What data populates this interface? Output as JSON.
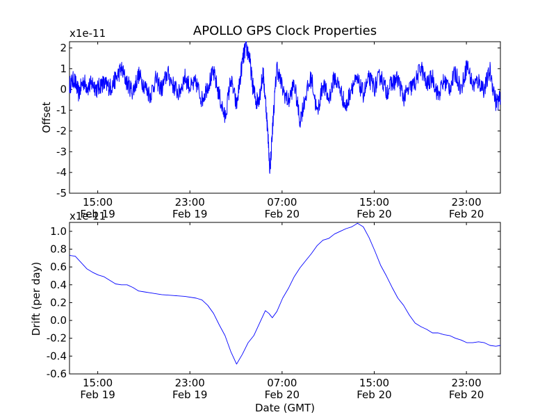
{
  "figure_title": "APOLLO GPS Clock Properties",
  "chart_data": [
    {
      "type": "line",
      "title": "APOLLO GPS Clock Properties",
      "ylabel": "Offset",
      "xlabel": "",
      "scale_label": "x1e-11",
      "ylim": [
        -5,
        2.3
      ],
      "yticks": [
        -5,
        -4,
        -3,
        -2,
        -1,
        0,
        1,
        2
      ],
      "ytick_labels": [
        "-5",
        "-4",
        "-3",
        "-2",
        "-1",
        "0",
        "1",
        "2"
      ],
      "xlim_hours": [
        0,
        37.4
      ],
      "xticks_hours": [
        2.45,
        10.45,
        18.45,
        26.45,
        34.45
      ],
      "xtick_labels": [
        [
          "15:00",
          "Feb 19"
        ],
        [
          "23:00",
          "Feb 19"
        ],
        [
          "07:00",
          "Feb 20"
        ],
        [
          "15:00",
          "Feb 20"
        ],
        [
          "23:00",
          "Feb 20"
        ]
      ],
      "color": "#0000ff",
      "series": [
        {
          "name": "Offset",
          "x_hours": [
            0,
            0.4,
            0.8,
            1.2,
            1.6,
            2.0,
            2.4,
            2.8,
            3.2,
            3.6,
            4.0,
            4.5,
            5.0,
            5.5,
            6.0,
            6.5,
            7.0,
            7.5,
            8.0,
            8.5,
            9.0,
            9.5,
            10.0,
            10.5,
            11.0,
            11.5,
            12.0,
            12.5,
            13.0,
            13.5,
            14.0,
            14.5,
            15.0,
            15.3,
            15.6,
            15.9,
            16.2,
            16.5,
            16.8,
            17.1,
            17.4,
            17.7,
            18.0,
            18.5,
            19.0,
            19.5,
            20.0,
            20.5,
            21.0,
            21.5,
            22.0,
            22.5,
            23.0,
            23.5,
            24.0,
            24.5,
            25.0,
            25.5,
            26.0,
            26.5,
            27.0,
            27.5,
            28.0,
            28.5,
            29.0,
            29.5,
            30.0,
            30.5,
            31.0,
            31.5,
            32.0,
            32.5,
            33.0,
            33.5,
            34.0,
            34.5,
            35.0,
            35.5,
            36.0,
            36.5,
            37.0,
            37.4
          ],
          "values": [
            0.2,
            0.5,
            -0.2,
            0.4,
            0.1,
            0.3,
            0.0,
            0.3,
            0.2,
            0.1,
            0.5,
            1.0,
            0.3,
            -0.1,
            0.7,
            0.2,
            -0.3,
            0.5,
            0.0,
            0.8,
            0.2,
            -0.2,
            0.6,
            0.1,
            0.3,
            -0.5,
            0.2,
            0.8,
            -0.3,
            -1.4,
            0.5,
            -0.8,
            1.3,
            2.1,
            1.6,
            0.2,
            -0.6,
            -0.3,
            0.8,
            -1.1,
            -3.9,
            -1.2,
            1.1,
            0.0,
            -0.6,
            0.3,
            -1.5,
            -0.3,
            0.6,
            -1.2,
            0.3,
            -0.5,
            0.6,
            0.0,
            -0.9,
            0.2,
            0.4,
            -0.2,
            0.5,
            0.1,
            0.7,
            -0.1,
            0.3,
            0.5,
            -0.4,
            0.0,
            0.3,
            1.1,
            0.2,
            0.6,
            -0.3,
            0.4,
            0.1,
            0.8,
            0.0,
            1.2,
            0.2,
            0.4,
            0.0,
            0.9,
            -0.6,
            -0.5
          ]
        }
      ]
    },
    {
      "type": "line",
      "title": "",
      "ylabel": "Drift (per day)",
      "xlabel": "Date (GMT)",
      "scale_label": "x1e-11",
      "ylim": [
        -0.6,
        1.1
      ],
      "yticks": [
        -0.6,
        -0.4,
        -0.2,
        0.0,
        0.2,
        0.4,
        0.6,
        0.8,
        1.0
      ],
      "ytick_labels": [
        "-0.6",
        "-0.4",
        "-0.2",
        "0.0",
        "0.2",
        "0.4",
        "0.6",
        "0.8",
        "1.0"
      ],
      "xlim_hours": [
        0,
        37.4
      ],
      "xticks_hours": [
        2.45,
        10.45,
        18.45,
        26.45,
        34.45
      ],
      "xtick_labels": [
        [
          "15:00",
          "Feb 19"
        ],
        [
          "23:00",
          "Feb 19"
        ],
        [
          "07:00",
          "Feb 20"
        ],
        [
          "15:00",
          "Feb 20"
        ],
        [
          "23:00",
          "Feb 20"
        ]
      ],
      "color": "#0000ff",
      "series": [
        {
          "name": "Drift",
          "x_hours": [
            0,
            0.5,
            1.0,
            1.5,
            2.0,
            2.5,
            3.0,
            3.5,
            4.0,
            4.5,
            5.0,
            5.5,
            6.0,
            6.5,
            7.0,
            8.0,
            9.0,
            10.0,
            11.0,
            11.5,
            12.0,
            12.5,
            13.0,
            13.5,
            14.0,
            14.5,
            15.0,
            15.5,
            16.0,
            16.5,
            17.0,
            17.3,
            17.6,
            18.0,
            18.5,
            19.0,
            19.5,
            20.0,
            20.5,
            21.0,
            21.5,
            22.0,
            22.5,
            23.0,
            23.5,
            24.0,
            24.5,
            25.0,
            25.5,
            26.0,
            26.5,
            27.0,
            27.5,
            28.0,
            28.5,
            29.0,
            29.5,
            30.0,
            30.5,
            31.0,
            31.5,
            32.0,
            32.5,
            33.0,
            33.5,
            34.0,
            34.5,
            35.0,
            35.5,
            36.0,
            36.5,
            37.0,
            37.4
          ],
          "values": [
            0.73,
            0.72,
            0.65,
            0.58,
            0.54,
            0.51,
            0.49,
            0.45,
            0.41,
            0.4,
            0.4,
            0.37,
            0.33,
            0.32,
            0.31,
            0.29,
            0.28,
            0.27,
            0.25,
            0.23,
            0.17,
            0.08,
            -0.05,
            -0.17,
            -0.35,
            -0.49,
            -0.38,
            -0.25,
            -0.17,
            -0.03,
            0.11,
            0.08,
            0.03,
            0.1,
            0.25,
            0.36,
            0.49,
            0.59,
            0.67,
            0.75,
            0.84,
            0.9,
            0.92,
            0.97,
            1.0,
            1.03,
            1.05,
            1.09,
            1.05,
            0.93,
            0.78,
            0.62,
            0.5,
            0.37,
            0.25,
            0.17,
            0.06,
            -0.03,
            -0.07,
            -0.1,
            -0.14,
            -0.14,
            -0.16,
            -0.17,
            -0.2,
            -0.22,
            -0.25,
            -0.25,
            -0.24,
            -0.25,
            -0.28,
            -0.29,
            -0.28
          ]
        }
      ]
    }
  ]
}
